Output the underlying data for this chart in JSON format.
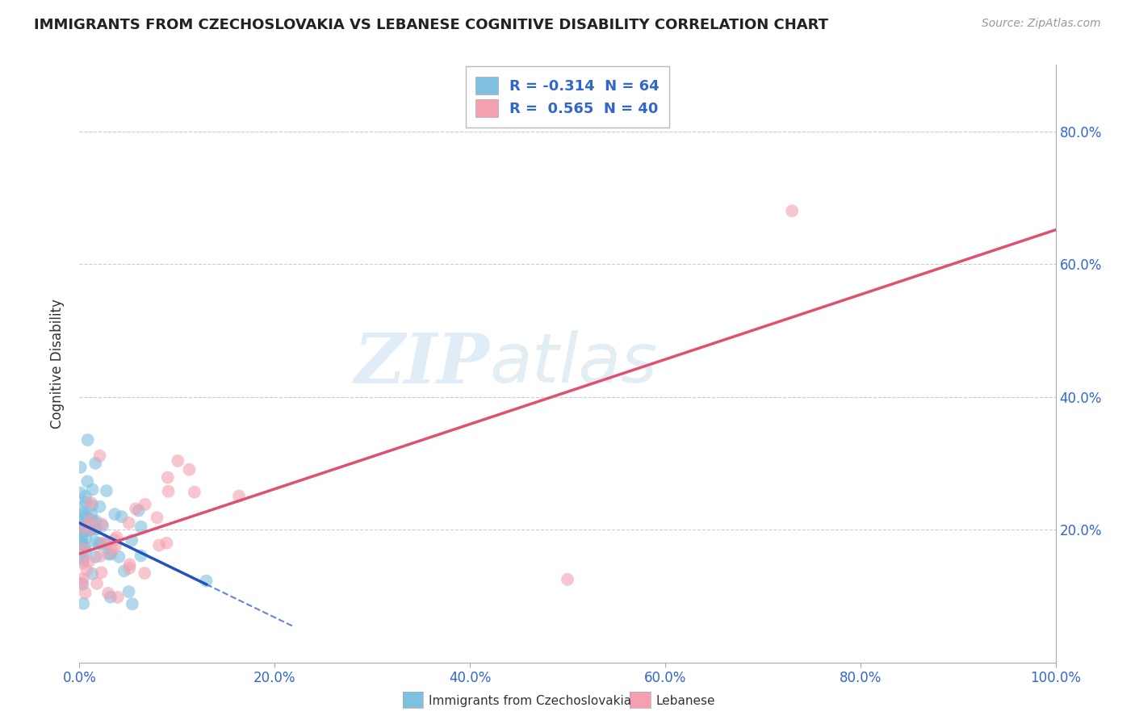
{
  "title": "IMMIGRANTS FROM CZECHOSLOVAKIA VS LEBANESE COGNITIVE DISABILITY CORRELATION CHART",
  "source": "Source: ZipAtlas.com",
  "xlabel": "",
  "ylabel": "Cognitive Disability",
  "legend_entry1": "R = -0.314  N = 64",
  "legend_entry2": "R =  0.565  N = 40",
  "legend_label1": "Immigrants from Czechoslovakia",
  "legend_label2": "Lebanese",
  "R1": -0.314,
  "N1": 64,
  "R2": 0.565,
  "N2": 40,
  "color1": "#7fbfdf",
  "color2": "#f4a0b0",
  "line_color1": "#2255bb",
  "line_color2": "#e05070",
  "xlim": [
    0.0,
    1.0
  ],
  "ylim": [
    0.0,
    0.9
  ],
  "xtick_values": [
    0.0,
    0.2,
    0.4,
    0.6,
    0.8,
    1.0
  ],
  "ytick_values": [
    0.2,
    0.4,
    0.6,
    0.8
  ],
  "watermark_zip": "ZIP",
  "watermark_atlas": "atlas",
  "background_color": "#ffffff",
  "grid_color": "#cccccc",
  "title_fontsize": 13,
  "source_fontsize": 10,
  "tick_fontsize": 12,
  "label_fontsize": 12,
  "legend_fontsize": 13
}
